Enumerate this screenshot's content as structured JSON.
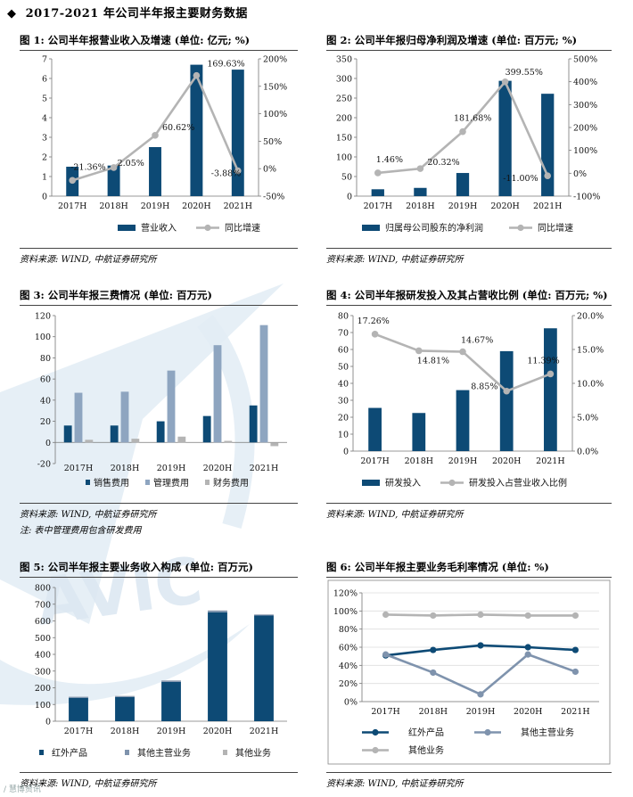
{
  "page": {
    "bullet": "◆",
    "title": "2017-2021 年公司半年报主要财务数据"
  },
  "footer": {
    "watermark_text": "/ 慧博资讯"
  },
  "charts": [
    {
      "key": "fig1",
      "title": "图 1: 公司半年报营业收入及增速 (单位: 亿元; %)",
      "source": "资料来源: WIND, 中航证券研究所",
      "note": ""
    },
    {
      "key": "fig2",
      "title": "图 2: 公司半年报归母净利润及增速 (单位: 百万元; %)",
      "source": "资料来源: WIND, 中航证券研究所",
      "note": ""
    },
    {
      "key": "fig3",
      "title": "图 3: 公司半年报三费情况 (单位: 百万元)",
      "source": "资料来源: WIND, 中航证券研究所",
      "note": "注: 表中管理费用包含研发费用"
    },
    {
      "key": "fig4",
      "title": "图 4: 公司半年报研发投入及其占营收比例 (单位: 百万元; %)",
      "source": "资料来源: WIND, 中航证券研究所",
      "note": ""
    },
    {
      "key": "fig5",
      "title": "图 5: 公司半年报主要业务收入构成 (单位: 百万元)",
      "source": "资料来源: WIND, 中航证券研究所",
      "note": ""
    },
    {
      "key": "fig6",
      "title": "图 6: 公司半年报主要业务毛利率情况 (单位: %)",
      "source": "资料来源: WIND, 中航证券研究所",
      "note": ""
    }
  ],
  "colors": {
    "navy": "#0d4a75",
    "gray": "#b4b4b4",
    "lightblue": "#8ea5c0",
    "steel": "#7f93ad",
    "watermark": "#dfe9f3"
  },
  "chart_data": [
    {
      "type": "bar+line",
      "categories": [
        "2017H",
        "2018H",
        "2019H",
        "2020H",
        "2021H"
      ],
      "bars": [
        {
          "name": "营业收入",
          "values": [
            1.5,
            1.56,
            2.5,
            6.7,
            6.45
          ]
        }
      ],
      "line": {
        "name": "同比增速",
        "values": [
          -21.36,
          2.05,
          60.62,
          169.63,
          -3.88
        ]
      },
      "line_labels": [
        "-21.36%",
        "2.05%",
        "60.62%",
        "169.63%",
        "-3.88%"
      ],
      "y_left": {
        "min": 0,
        "max": 7,
        "step": 1,
        "ticks": [
          "0",
          "1",
          "2",
          "3",
          "4",
          "5",
          "6",
          "7"
        ]
      },
      "y_right": {
        "min": -50,
        "max": 200,
        "step": 50,
        "ticks": [
          "-50%",
          "0%",
          "50%",
          "100%",
          "150%",
          "200%"
        ]
      },
      "legend": [
        "营业收入",
        "同比增速"
      ]
    },
    {
      "type": "bar+line",
      "categories": [
        "2017H",
        "2018H",
        "2019H",
        "2020H",
        "2021H"
      ],
      "bars": [
        {
          "name": "归属母公司股东的净利润",
          "values": [
            17.5,
            21,
            59,
            294,
            261
          ]
        }
      ],
      "line": {
        "name": "同比增速",
        "values": [
          1.46,
          20.32,
          181.68,
          399.55,
          -11.0
        ]
      },
      "line_labels": [
        "1.46%",
        "20.32%",
        "181.68%",
        "399.55%",
        "-11.00%"
      ],
      "y_left": {
        "min": 0,
        "max": 350,
        "step": 50,
        "ticks": [
          "0",
          "50",
          "100",
          "150",
          "200",
          "250",
          "300",
          "350"
        ]
      },
      "y_right": {
        "min": -100,
        "max": 500,
        "step": 100,
        "ticks": [
          "-100%",
          "0%",
          "100%",
          "200%",
          "300%",
          "400%",
          "500%"
        ]
      },
      "legend": [
        "归属母公司股东的净利润",
        "同比增速"
      ]
    },
    {
      "type": "grouped-bar",
      "categories": [
        "2017H",
        "2018H",
        "2019H",
        "2020H",
        "2021H"
      ],
      "series": [
        {
          "name": "销售费用",
          "values": [
            16,
            16,
            20,
            25,
            35
          ]
        },
        {
          "name": "管理费用",
          "values": [
            47,
            48,
            68,
            92,
            111
          ]
        },
        {
          "name": "财务费用",
          "values": [
            2.5,
            3.5,
            5.5,
            1.5,
            -3.5
          ]
        }
      ],
      "y_left": {
        "min": -20,
        "max": 120,
        "step": 20,
        "ticks": [
          "-20",
          "0",
          "20",
          "40",
          "60",
          "80",
          "100",
          "120"
        ]
      },
      "legend": [
        "销售费用",
        "管理费用",
        "财务费用"
      ]
    },
    {
      "type": "bar+line",
      "categories": [
        "2017H",
        "2018H",
        "2019H",
        "2020H",
        "2021H"
      ],
      "bars": [
        {
          "name": "研发投入",
          "values": [
            25.5,
            22.5,
            36,
            59,
            72.5
          ]
        }
      ],
      "line": {
        "name": "研发投入占营业收入比例",
        "values": [
          17.26,
          14.81,
          14.67,
          8.85,
          11.39
        ]
      },
      "line_labels": [
        "17.26%",
        "14.81%",
        "14.67%",
        "8.85%",
        "11.39%"
      ],
      "y_left": {
        "min": 0,
        "max": 80,
        "step": 10,
        "ticks": [
          "0",
          "10",
          "20",
          "30",
          "40",
          "50",
          "60",
          "70",
          "80"
        ]
      },
      "y_right": {
        "min": 0,
        "max": 20,
        "step": 5,
        "ticks": [
          "0.0%",
          "5.0%",
          "10.0%",
          "15.0%",
          "20.0%"
        ]
      },
      "legend": [
        "研发投入",
        "研发投入占营业收入比例"
      ]
    },
    {
      "type": "stacked-bar",
      "categories": [
        "2017H",
        "2018H",
        "2019H",
        "2020H",
        "2021H"
      ],
      "series": [
        {
          "name": "红外产品",
          "values": [
            140,
            145,
            235,
            652,
            632
          ]
        },
        {
          "name": "其他主营业务",
          "values": [
            6,
            6,
            8,
            10,
            6
          ]
        },
        {
          "name": "其他业务",
          "values": [
            1,
            1,
            1,
            1,
            1
          ]
        }
      ],
      "y_left": {
        "min": 0,
        "max": 800,
        "step": 100,
        "ticks": [
          "0",
          "100",
          "200",
          "300",
          "400",
          "500",
          "600",
          "700",
          "800"
        ]
      },
      "legend": [
        "红外产品",
        "其他主营业务",
        "其他业务"
      ]
    },
    {
      "type": "line",
      "categories": [
        "2017H",
        "2018H",
        "2019H",
        "2020H",
        "2021H"
      ],
      "series": [
        {
          "name": "红外产品",
          "values": [
            51,
            57,
            62,
            60,
            57
          ]
        },
        {
          "name": "其他主营业务",
          "values": [
            52,
            32,
            8,
            52,
            33
          ]
        },
        {
          "name": "其他业务",
          "values": [
            96,
            95,
            96,
            95,
            95
          ]
        }
      ],
      "y_left": {
        "min": 0,
        "max": 120,
        "step": 20,
        "ticks": [
          "0%",
          "20%",
          "40%",
          "60%",
          "80%",
          "100%",
          "120%"
        ]
      },
      "legend": [
        "红外产品",
        "其他主营业务",
        "其他业务"
      ]
    }
  ]
}
